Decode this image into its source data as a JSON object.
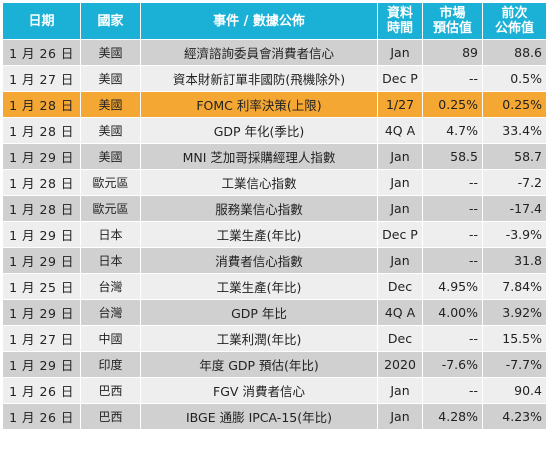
{
  "colors": {
    "header_bg": "#1bb1d6",
    "header_text": "#ffffff",
    "row_dark": "#d0d0d0",
    "row_light": "#eeeeee",
    "highlight": "#f5a733"
  },
  "headers": {
    "date": "日期",
    "country": "國家",
    "event": "事件 / 數據公佈",
    "period_line1": "資料",
    "period_line2": "時間",
    "forecast_line1": "市場",
    "forecast_line2": "預估值",
    "previous_line1": "前次",
    "previous_line2": "公佈值"
  },
  "rows": [
    {
      "date": "1 月 26 日",
      "country": "美國",
      "event": "經濟諮詢委員會消費者信心",
      "period": "Jan",
      "forecast": "89",
      "previous": "88.6"
    },
    {
      "date": "1 月 27 日",
      "country": "美國",
      "event": "資本財新訂單非國防(飛機除外)",
      "period": "Dec P",
      "forecast": "--",
      "previous": "0.5%"
    },
    {
      "date": "1 月 28 日",
      "country": "美國",
      "event": "FOMC 利率決策(上限)",
      "period": "1/27",
      "forecast": "0.25%",
      "previous": "0.25%"
    },
    {
      "date": "1 月 28 日",
      "country": "美國",
      "event": "GDP 年化(季比)",
      "period": "4Q A",
      "forecast": "4.7%",
      "previous": "33.4%"
    },
    {
      "date": "1 月 29 日",
      "country": "美國",
      "event": "MNI 芝加哥採購經理人指數",
      "period": "Jan",
      "forecast": "58.5",
      "previous": "58.7"
    },
    {
      "date": "1 月 28 日",
      "country": "歐元區",
      "event": "工業信心指數",
      "period": "Jan",
      "forecast": "--",
      "previous": "-7.2"
    },
    {
      "date": "1 月 28 日",
      "country": "歐元區",
      "event": "服務業信心指數",
      "period": "Jan",
      "forecast": "--",
      "previous": "-17.4"
    },
    {
      "date": "1 月 29 日",
      "country": "日本",
      "event": "工業生產(年比)",
      "period": "Dec P",
      "forecast": "--",
      "previous": "-3.9%"
    },
    {
      "date": "1 月 29 日",
      "country": "日本",
      "event": "消費者信心指數",
      "period": "Jan",
      "forecast": "--",
      "previous": "31.8"
    },
    {
      "date": "1 月 25 日",
      "country": "台灣",
      "event": "工業生產(年比)",
      "period": "Dec",
      "forecast": "4.95%",
      "previous": "7.84%"
    },
    {
      "date": "1 月 29 日",
      "country": "台灣",
      "event": "GDP 年比",
      "period": "4Q A",
      "forecast": "4.00%",
      "previous": "3.92%"
    },
    {
      "date": "1 月 27 日",
      "country": "中國",
      "event": "工業利潤(年比)",
      "period": "Dec",
      "forecast": "--",
      "previous": "15.5%"
    },
    {
      "date": "1 月 29 日",
      "country": "印度",
      "event": "年度 GDP 預估(年比)",
      "period": "2020",
      "forecast": "-7.6%",
      "previous": "-7.7%"
    },
    {
      "date": "1 月 26 日",
      "country": "巴西",
      "event": "FGV 消費者信心",
      "period": "Jan",
      "forecast": "--",
      "previous": "90.4"
    },
    {
      "date": "1 月 26 日",
      "country": "巴西",
      "event": "IBGE 通膨 IPCA-15(年比)",
      "period": "Jan",
      "forecast": "4.28%",
      "previous": "4.23%"
    }
  ],
  "highlight_row_index": 2
}
